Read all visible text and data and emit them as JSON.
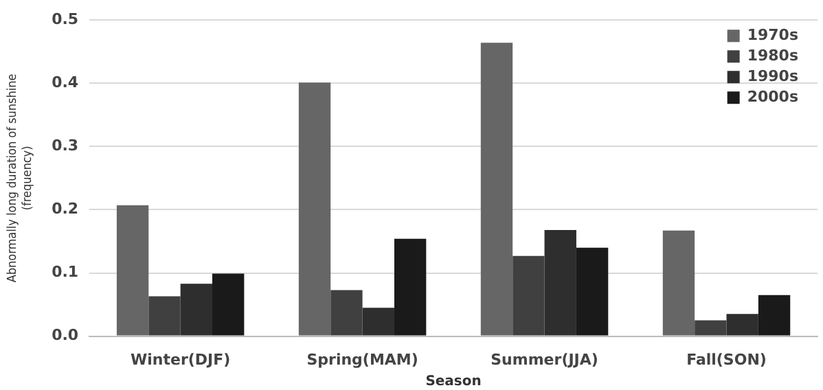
{
  "chart_data": {
    "type": "bar",
    "xlabel": "Season",
    "ylabel": "Abnormally long duration of sunshine\n(frequency)",
    "categories": [
      "Winter(DJF)",
      "Spring(MAM)",
      "Summer(JJA)",
      "Fall(SON)"
    ],
    "series": [
      {
        "name": "1970s",
        "color": "#666666",
        "values": [
          0.207,
          0.401,
          0.464,
          0.167
        ]
      },
      {
        "name": "1980s",
        "color": "#404040",
        "values": [
          0.063,
          0.073,
          0.127,
          0.025
        ]
      },
      {
        "name": "1990s",
        "color": "#2e2e2e",
        "values": [
          0.083,
          0.045,
          0.168,
          0.035
        ]
      },
      {
        "name": "2000s",
        "color": "#1a1a1a",
        "values": [
          0.099,
          0.154,
          0.14,
          0.065
        ]
      }
    ],
    "ylim": [
      0,
      0.5
    ],
    "yticks": [
      {
        "value": 0,
        "label": "0.0"
      },
      0.1,
      0.2,
      0.3,
      0.4,
      0.5
    ],
    "grid": "y",
    "legend": "top right"
  }
}
